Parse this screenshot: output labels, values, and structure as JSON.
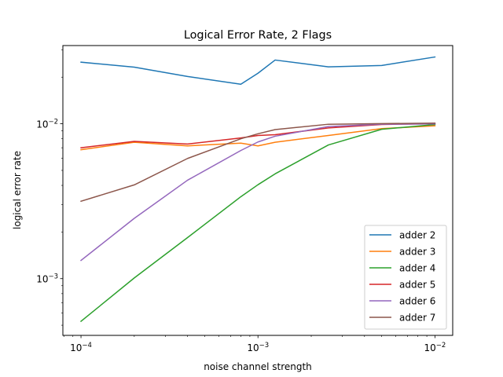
{
  "chart_data": {
    "type": "line",
    "title": "Logical Error Rate, 2 Flags",
    "xlabel": "noise channel strength",
    "ylabel": "logical error rate",
    "xscale": "log",
    "yscale": "log",
    "xlim": [
      7.9e-05,
      0.0126
    ],
    "ylim": [
      0.00043,
      0.032
    ],
    "x_ticks": [
      {
        "value": 0.0001,
        "base": "10",
        "exp": "−4"
      },
      {
        "value": 0.001,
        "base": "10",
        "exp": "−3"
      },
      {
        "value": 0.01,
        "base": "10",
        "exp": "−2"
      }
    ],
    "y_ticks": [
      {
        "value": 0.001,
        "base": "10",
        "exp": "−3"
      },
      {
        "value": 0.01,
        "base": "10",
        "exp": "−2"
      }
    ],
    "grid": false,
    "legend_position": "lower-right",
    "x": [
      0.0001,
      0.0002,
      0.0004,
      0.0008,
      0.001,
      0.00125,
      0.0025,
      0.005,
      0.01
    ],
    "series": [
      {
        "name": "adder 2",
        "color": "#1f77b4",
        "values": [
          0.025,
          0.0232,
          0.0202,
          0.018,
          0.0212,
          0.0258,
          0.0233,
          0.0238,
          0.027
        ]
      },
      {
        "name": "adder 3",
        "color": "#ff7f0e",
        "values": [
          0.0068,
          0.0076,
          0.0072,
          0.0075,
          0.0072,
          0.0076,
          0.0084,
          0.0093,
          0.0097
        ]
      },
      {
        "name": "adder 4",
        "color": "#2ca02c",
        "values": [
          0.00053,
          0.00101,
          0.00184,
          0.00338,
          0.00404,
          0.00475,
          0.0073,
          0.00921,
          0.00989
        ]
      },
      {
        "name": "adder 5",
        "color": "#d62728",
        "values": [
          0.007,
          0.0077,
          0.0074,
          0.0081,
          0.0084,
          0.0085,
          0.0094,
          0.0099,
          0.01
        ]
      },
      {
        "name": "adder 6",
        "color": "#9467bd",
        "values": [
          0.00131,
          0.00245,
          0.00432,
          0.00672,
          0.00763,
          0.00831,
          0.0096,
          0.00994,
          0.00998
        ]
      },
      {
        "name": "adder 7",
        "color": "#8c564b",
        "values": [
          0.00316,
          0.00403,
          0.00597,
          0.008,
          0.00862,
          0.00917,
          0.00993,
          0.01002,
          0.0101
        ]
      }
    ]
  }
}
